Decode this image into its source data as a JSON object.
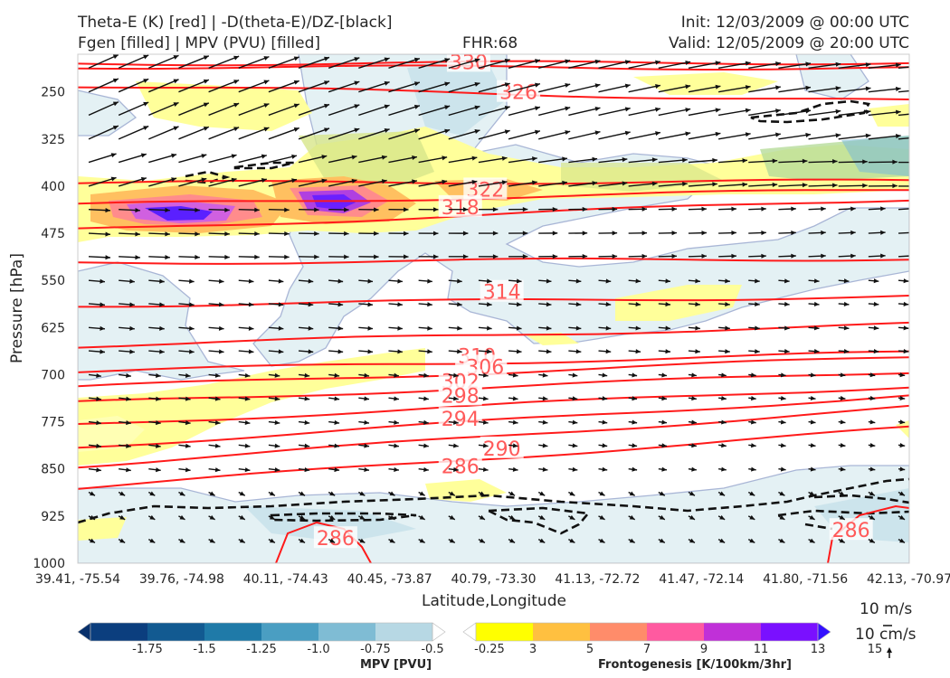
{
  "header": {
    "line1_left": "Theta-E (K) [red] | -D(theta-E)/DZ-[black]",
    "line2_left": "Fgen [filled] | MPV (PVU) [filled]",
    "fhr": "FHR:68",
    "init": "Init: 12/03/2009 @ 00:00 UTC",
    "valid": "Valid: 12/05/2009 @ 20:00 UTC"
  },
  "chart_data": {
    "type": "cross-section",
    "xlabel": "Latitude,Longitude",
    "ylabel": "Pressure [hPa]",
    "y_ticks": [
      250,
      325,
      400,
      475,
      550,
      625,
      700,
      775,
      850,
      925,
      1000
    ],
    "ylim": [
      1000,
      190
    ],
    "x_ticks": [
      "39.41, -75.54",
      "39.76, -74.98",
      "40.11, -74.43",
      "40.45, -73.87",
      "40.79, -73.30",
      "41.13, -72.72",
      "41.47, -72.14",
      "41.80, -71.56",
      "42.13, -70.97"
    ],
    "theta_e_labels": [
      {
        "label": "330",
        "x": 0.47,
        "p": 202
      },
      {
        "label": "326",
        "x": 0.53,
        "p": 250
      },
      {
        "label": "322",
        "x": 0.49,
        "p": 405
      },
      {
        "label": "318",
        "x": 0.46,
        "p": 433
      },
      {
        "label": "314",
        "x": 0.51,
        "p": 568
      },
      {
        "label": "310",
        "x": 0.48,
        "p": 670
      },
      {
        "label": "306",
        "x": 0.49,
        "p": 687
      },
      {
        "label": "302",
        "x": 0.46,
        "p": 710
      },
      {
        "label": "298",
        "x": 0.46,
        "p": 733
      },
      {
        "label": "294",
        "x": 0.46,
        "p": 770
      },
      {
        "label": "290",
        "x": 0.51,
        "p": 817
      },
      {
        "label": "286",
        "x": 0.46,
        "p": 845
      },
      {
        "label": "286",
        "x": 0.31,
        "p": 960
      },
      {
        "label": "286",
        "x": 0.93,
        "p": 947
      }
    ],
    "theta_e_lines": [
      {
        "p0": 205,
        "p1": 203
      },
      {
        "p0": 210,
        "p1": 212
      },
      {
        "p0": 240,
        "p1": 265
      },
      {
        "p0": 395,
        "p1": 392
      },
      {
        "p0": 430,
        "p1": 405
      },
      {
        "p0": 470,
        "p1": 420
      },
      {
        "p0": 522,
        "p1": 515
      },
      {
        "p0": 590,
        "p1": 575
      },
      {
        "p0": 654,
        "p1": 620
      },
      {
        "p0": 695,
        "p1": 665
      },
      {
        "p0": 720,
        "p1": 672
      },
      {
        "p0": 745,
        "p1": 695
      },
      {
        "p0": 780,
        "p1": 718
      },
      {
        "p0": 815,
        "p1": 733
      },
      {
        "p0": 845,
        "p1": 752
      },
      {
        "p0": 880,
        "p1": 785
      }
    ],
    "mpv_colorbar": {
      "title": "MPV [PVU]",
      "ticks": [
        "-1.75",
        "-1.5",
        "-1.25",
        "-1.0",
        "-0.75",
        "-0.5",
        "-0.25"
      ],
      "colors": [
        "#08306b",
        "#0b3e7e",
        "#125a91",
        "#1f7aa8",
        "#4a9ec2",
        "#7fbcd4",
        "#b7d8e4",
        "#ffffff"
      ]
    },
    "fgen_colorbar": {
      "title": "Frontogenesis [K/100km/3hr]",
      "ticks": [
        "3",
        "5",
        "7",
        "9",
        "11",
        "13",
        "15"
      ],
      "colors": [
        "#ffffff",
        "#ffff00",
        "#ffc040",
        "#ff8c6a",
        "#ff5aa0",
        "#c030d8",
        "#7a10ff",
        "#3410ff"
      ]
    },
    "wind_reference": {
      "label1": "10 m/s",
      "label2": "10 cm/s"
    }
  }
}
